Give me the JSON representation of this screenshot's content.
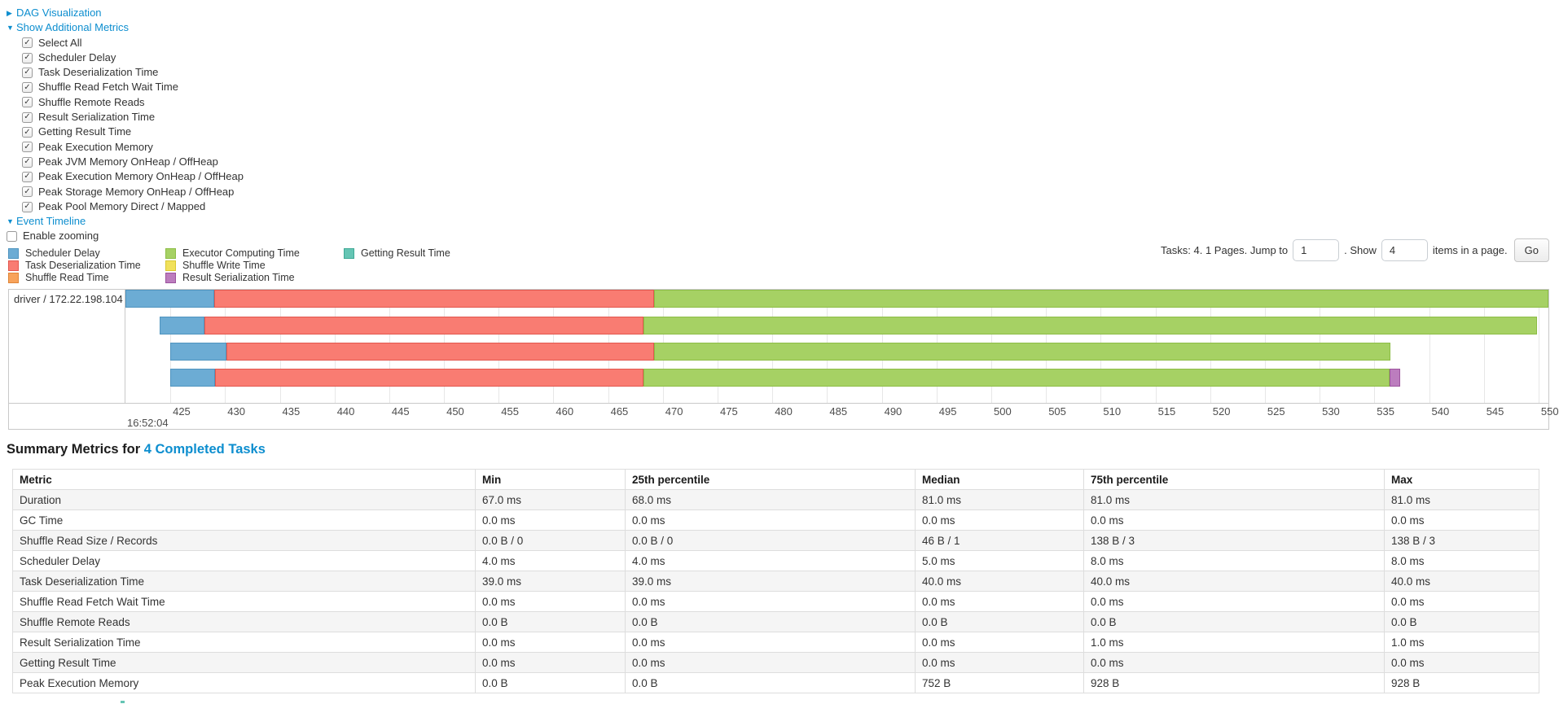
{
  "controls": {
    "dag": {
      "label": "DAG Visualization"
    },
    "metrics": {
      "label": "Show Additional Metrics",
      "items": [
        "Select All",
        "Scheduler Delay",
        "Task Deserialization Time",
        "Shuffle Read Fetch Wait Time",
        "Shuffle Remote Reads",
        "Result Serialization Time",
        "Getting Result Time",
        "Peak Execution Memory",
        "Peak JVM Memory OnHeap / OffHeap",
        "Peak Execution Memory OnHeap / OffHeap",
        "Peak Storage Memory OnHeap / OffHeap",
        "Peak Pool Memory Direct / Mapped"
      ]
    },
    "timeline": {
      "label": "Event Timeline"
    },
    "enable_zooming": "Enable zooming"
  },
  "colors": {
    "scheduler_delay": {
      "fill": "#6cacd4",
      "border": "#4f94bf"
    },
    "task_deserialization_time": {
      "fill": "#f97c72",
      "border": "#e2574e"
    },
    "shuffle_read_time": {
      "fill": "#f8a35b",
      "border": "#e08538"
    },
    "executor_computing_time": {
      "fill": "#a6d164",
      "border": "#8dbd46"
    },
    "shuffle_write_time": {
      "fill": "#f1e15b",
      "border": "#d9c832"
    },
    "result_serialization_time": {
      "fill": "#bc7dbe",
      "border": "#9c539e"
    },
    "getting_result_time": {
      "fill": "#65c5b4",
      "border": "#3fa995"
    },
    "link": "#0d8ecf"
  },
  "legend": {
    "items": [
      {
        "label": "Scheduler Delay",
        "key": "scheduler_delay",
        "col": 0
      },
      {
        "label": "Task Deserialization Time",
        "key": "task_deserialization_time",
        "col": 0
      },
      {
        "label": "Shuffle Read Time",
        "key": "shuffle_read_time",
        "col": 0
      },
      {
        "label": "Executor Computing Time",
        "key": "executor_computing_time",
        "col": 1
      },
      {
        "label": "Shuffle Write Time",
        "key": "shuffle_write_time",
        "col": 1
      },
      {
        "label": "Result Serialization Time",
        "key": "result_serialization_time",
        "col": 1
      },
      {
        "label": "Getting Result Time",
        "key": "getting_result_time",
        "col": 2
      }
    ]
  },
  "pagination": {
    "prefix": "Tasks: 4. 1 Pages. Jump to",
    "jump_value": "1",
    "mid": ". Show",
    "show_value": "4",
    "suffix": "items in a page.",
    "go": "Go"
  },
  "chart_data": {
    "type": "bar",
    "variant": "horizontal-gantt-task-timeline",
    "group_label": "driver / 172.22.198.104",
    "x_axis": {
      "xlim": [
        420.9,
        550.9
      ],
      "tick_interval": 5,
      "ticks": [
        425,
        430,
        435,
        440,
        445,
        450,
        455,
        460,
        465,
        470,
        475,
        480,
        485,
        490,
        495,
        500,
        505,
        510,
        515,
        520,
        525,
        530,
        535,
        540,
        545,
        550
      ],
      "context_label": "16:52:04"
    },
    "tasks": [
      {
        "segments": [
          {
            "key": "scheduler_delay",
            "label": "Scheduler Delay",
            "start": 420.9,
            "end": 429.0
          },
          {
            "key": "task_deserialization_time",
            "label": "Task Deserialization Time",
            "start": 429.0,
            "end": 469.2
          },
          {
            "key": "executor_computing_time",
            "label": "Executor Computing Time",
            "start": 469.2,
            "end": 550.9
          }
        ]
      },
      {
        "segments": [
          {
            "key": "scheduler_delay",
            "label": "Scheduler Delay",
            "start": 424.0,
            "end": 428.1
          },
          {
            "key": "task_deserialization_time",
            "label": "Task Deserialization Time",
            "start": 428.1,
            "end": 468.2
          },
          {
            "key": "executor_computing_time",
            "label": "Executor Computing Time",
            "start": 468.2,
            "end": 549.9
          }
        ]
      },
      {
        "segments": [
          {
            "key": "scheduler_delay",
            "label": "Scheduler Delay",
            "start": 425.0,
            "end": 430.1
          },
          {
            "key": "task_deserialization_time",
            "label": "Task Deserialization Time",
            "start": 430.1,
            "end": 469.2
          },
          {
            "key": "executor_computing_time",
            "label": "Executor Computing Time",
            "start": 469.2,
            "end": 536.5
          }
        ]
      },
      {
        "segments": [
          {
            "key": "scheduler_delay",
            "label": "Scheduler Delay",
            "start": 425.0,
            "end": 429.1
          },
          {
            "key": "task_deserialization_time",
            "label": "Task Deserialization Time",
            "start": 429.1,
            "end": 468.2
          },
          {
            "key": "executor_computing_time",
            "label": "Executor Computing Time",
            "start": 468.2,
            "end": 536.4
          },
          {
            "key": "result_serialization_time",
            "label": "Result Serialization Time",
            "start": 536.4,
            "end": 537.4
          }
        ]
      }
    ]
  },
  "summary": {
    "title_prefix": "Summary Metrics for",
    "title_link": "4 Completed Tasks",
    "columns": [
      "Metric",
      "Min",
      "25th percentile",
      "Median",
      "75th percentile",
      "Max"
    ],
    "rows": [
      {
        "metric": "Duration",
        "values": [
          "67.0 ms",
          "68.0 ms",
          "81.0 ms",
          "81.0 ms",
          "81.0 ms"
        ]
      },
      {
        "metric": "GC Time",
        "values": [
          "0.0 ms",
          "0.0 ms",
          "0.0 ms",
          "0.0 ms",
          "0.0 ms"
        ]
      },
      {
        "metric": "Shuffle Read Size / Records",
        "values": [
          "0.0 B / 0",
          "0.0 B / 0",
          "46 B / 1",
          "138 B / 3",
          "138 B / 3"
        ]
      },
      {
        "metric": "Scheduler Delay",
        "values": [
          "4.0 ms",
          "4.0 ms",
          "5.0 ms",
          "8.0 ms",
          "8.0 ms"
        ]
      },
      {
        "metric": "Task Deserialization Time",
        "values": [
          "39.0 ms",
          "39.0 ms",
          "40.0 ms",
          "40.0 ms",
          "40.0 ms"
        ]
      },
      {
        "metric": "Shuffle Read Fetch Wait Time",
        "values": [
          "0.0 ms",
          "0.0 ms",
          "0.0 ms",
          "0.0 ms",
          "0.0 ms"
        ]
      },
      {
        "metric": "Shuffle Remote Reads",
        "values": [
          "0.0 B",
          "0.0 B",
          "0.0 B",
          "0.0 B",
          "0.0 B"
        ]
      },
      {
        "metric": "Result Serialization Time",
        "values": [
          "0.0 ms",
          "0.0 ms",
          "0.0 ms",
          "1.0 ms",
          "1.0 ms"
        ]
      },
      {
        "metric": "Getting Result Time",
        "values": [
          "0.0 ms",
          "0.0 ms",
          "0.0 ms",
          "0.0 ms",
          "0.0 ms"
        ]
      },
      {
        "metric": "Peak Execution Memory",
        "values": [
          "0.0 B",
          "0.0 B",
          "752 B",
          "928 B",
          "928 B"
        ]
      }
    ]
  }
}
